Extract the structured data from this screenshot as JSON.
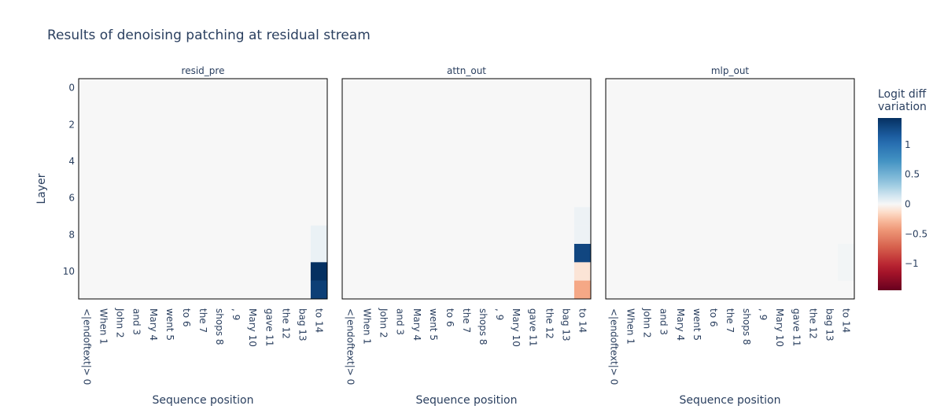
{
  "chart_data": {
    "type": "heatmap",
    "title": "Results of denoising patching at residual stream",
    "ylabel": "Layer",
    "xlabel": "Sequence position",
    "y_ticks": [
      0,
      2,
      4,
      6,
      8,
      10
    ],
    "x_categories": [
      "<|endoftext|> 0",
      "When 1",
      "John 2",
      "and 3",
      "Mary 4",
      "went 5",
      "to 6",
      "the 7",
      "shops 8",
      ", 9",
      "Mary 10",
      "gave 11",
      "the 12",
      "bag 13",
      "to 14"
    ],
    "layers": 12,
    "colorbar": {
      "title": [
        "Logit diff",
        "variation"
      ],
      "ticks": [
        1,
        0.5,
        0,
        -0.5,
        -1
      ],
      "tick_labels": [
        "1",
        "0.5",
        "0",
        "−0.5",
        "−1"
      ],
      "range": [
        -1.45,
        1.45
      ],
      "colorscale": "RdBu"
    },
    "panels": [
      {
        "name": "resid_pre",
        "nonzero_cells": [
          {
            "layer": 8,
            "position": 14,
            "value": 0.05
          },
          {
            "layer": 9,
            "position": 14,
            "value": 0.05
          },
          {
            "layer": 10,
            "position": 14,
            "value": 1.45
          },
          {
            "layer": 11,
            "position": 14,
            "value": 1.35
          }
        ]
      },
      {
        "name": "attn_out",
        "nonzero_cells": [
          {
            "layer": 7,
            "position": 14,
            "value": 0.04
          },
          {
            "layer": 8,
            "position": 14,
            "value": 0.04
          },
          {
            "layer": 9,
            "position": 14,
            "value": 1.3
          },
          {
            "layer": 10,
            "position": 14,
            "value": -0.1
          },
          {
            "layer": 11,
            "position": 14,
            "value": -0.35
          }
        ]
      },
      {
        "name": "mlp_out",
        "nonzero_cells": [
          {
            "layer": 9,
            "position": 14,
            "value": 0.02
          },
          {
            "layer": 10,
            "position": 14,
            "value": 0.02
          }
        ]
      }
    ]
  }
}
